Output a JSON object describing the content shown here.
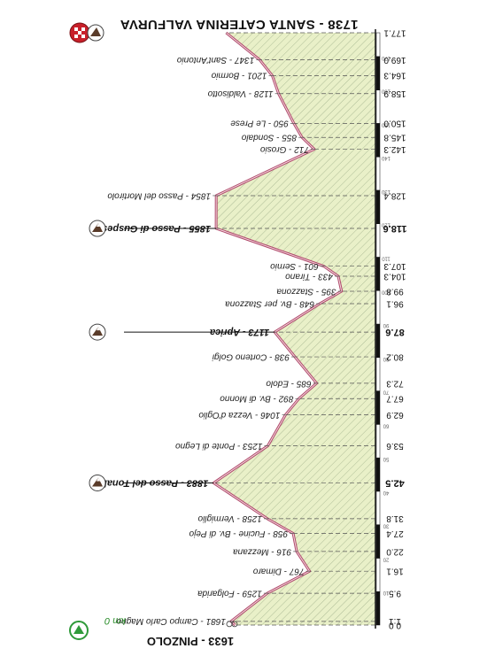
{
  "chart_data": {
    "type": "area",
    "title": "1738 - SANTA CATERINA VALFURVA",
    "start_label": "1633 - PINZOLO",
    "km_zero_label": "km 0",
    "xlim": [
      0,
      177.1
    ],
    "ylim": [
      0,
      2000
    ],
    "colors": {
      "fill": "#e9f0c8",
      "hatch": "#9fb08a",
      "line": "#b04a6b",
      "axis": "#111111",
      "flag_red": "#c8202a",
      "flag_green": "#2f9a3a"
    },
    "points": [
      {
        "km": 0.0,
        "alt": 1633,
        "label": "",
        "kmlabel": "0.0"
      },
      {
        "km": 1.1,
        "alt": 1681,
        "label": "1681 - Campo Carlo Magno",
        "kmlabel": "1.1"
      },
      {
        "km": 9.5,
        "alt": 1259,
        "label": "1259 - Folgarida",
        "kmlabel": "9.5"
      },
      {
        "km": 16.1,
        "alt": 767,
        "label": "767 - Dimaro",
        "kmlabel": "16.1"
      },
      {
        "km": 22.0,
        "alt": 916,
        "label": "916 - Mezzana",
        "kmlabel": "22.0"
      },
      {
        "km": 27.4,
        "alt": 958,
        "label": "958 - Fucine - Bv. di Pejo",
        "kmlabel": "27.4"
      },
      {
        "km": 31.8,
        "alt": 1258,
        "label": "1258 - Vermiglio",
        "kmlabel": "31.8"
      },
      {
        "km": 42.5,
        "alt": 1883,
        "label": "1883 - Passo del Tonale",
        "kmlabel": "42.5",
        "major": true,
        "flag": "gpm2"
      },
      {
        "km": 53.6,
        "alt": 1253,
        "label": "1253 - Ponte di Legno",
        "kmlabel": "53.6"
      },
      {
        "km": 62.9,
        "alt": 1046,
        "label": "1046 - Vezza d'Oglio",
        "kmlabel": "62.9"
      },
      {
        "km": 67.7,
        "alt": 892,
        "label": "892 - Bv. di Monno",
        "kmlabel": "67.7"
      },
      {
        "km": 72.3,
        "alt": 685,
        "label": "685 - Edolo",
        "kmlabel": "72.3"
      },
      {
        "km": 80.2,
        "alt": 938,
        "label": "938 - Corteno Golgi",
        "kmlabel": "80.2"
      },
      {
        "km": 87.6,
        "alt": 1173,
        "label": "1173 - Aprica",
        "kmlabel": "87.6",
        "major": true,
        "flag": "gpm3"
      },
      {
        "km": 96.1,
        "alt": 648,
        "label": "648 - Bv. per Stazzona",
        "kmlabel": "96.1"
      },
      {
        "km": 99.8,
        "alt": 395,
        "label": "395 - Stazzona",
        "kmlabel": "99.8"
      },
      {
        "km": 104.3,
        "alt": 433,
        "label": "433 - Tirano",
        "kmlabel": "104.3"
      },
      {
        "km": 107.3,
        "alt": 601,
        "label": "601 - Sernio",
        "kmlabel": "107.3"
      },
      {
        "km": 118.6,
        "alt": 1855,
        "label": "1855 - Passo di Guspessa",
        "kmlabel": "118.6",
        "major": true,
        "flag": "gpm1"
      },
      {
        "km": 128.4,
        "alt": 1854,
        "label": "1854 - Passo del Mortirolo",
        "kmlabel": "128.4"
      },
      {
        "km": 142.3,
        "alt": 712,
        "label": "712 - Grosio",
        "kmlabel": "142.3"
      },
      {
        "km": 145.8,
        "alt": 855,
        "label": "855 - Sondalo",
        "kmlabel": "145.8"
      },
      {
        "km": 150.0,
        "alt": 950,
        "label": "950 - Le Prese",
        "kmlabel": "150.0"
      },
      {
        "km": 158.9,
        "alt": 1128,
        "label": "1128 - Valdisotto",
        "kmlabel": "158.9"
      },
      {
        "km": 164.3,
        "alt": 1201,
        "label": "1201 - Bormio",
        "kmlabel": "164.3"
      },
      {
        "km": 169.0,
        "alt": 1347,
        "label": "1347 - Sant'Antonio",
        "kmlabel": "169.0"
      },
      {
        "km": 177.1,
        "alt": 1738,
        "label": "",
        "kmlabel": "177.1"
      }
    ]
  }
}
